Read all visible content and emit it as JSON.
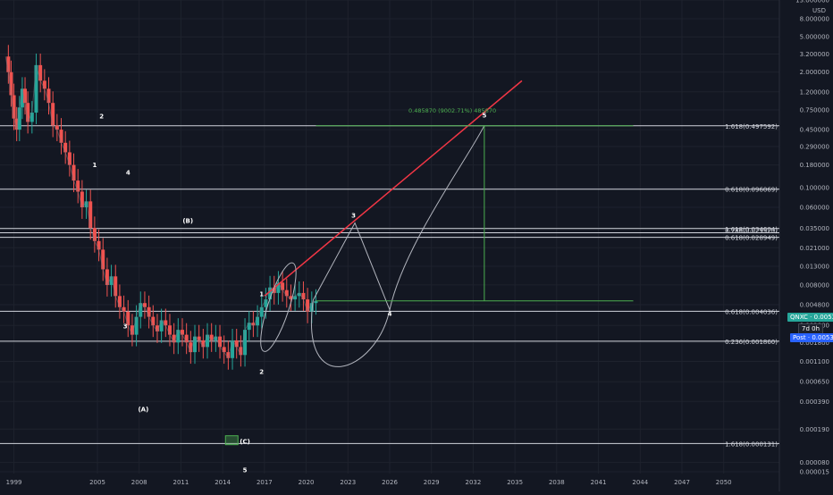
{
  "chart_data": {
    "type": "line",
    "title": "",
    "currency_label": "USD",
    "scale": "log",
    "ylim": [
      6e-05,
      13.0
    ],
    "xlim": [
      1998.0,
      2054.0
    ],
    "x_ticks": [
      "1999",
      "2005",
      "2008",
      "2011",
      "2014",
      "2017",
      "2020",
      "2023",
      "2026",
      "2029",
      "2032",
      "2035",
      "2038",
      "2041",
      "2044",
      "2047",
      "2050"
    ],
    "y_ticks": [
      "13.000000",
      "8.000000",
      "5.000000",
      "3.200000",
      "2.000000",
      "1.200000",
      "0.750000",
      "0.450000",
      "0.290000",
      "0.180000",
      "0.100000",
      "0.060000",
      "0.035000",
      "0.021000",
      "0.013000",
      "0.008000",
      "0.004800",
      "0.002800",
      "0.001800",
      "0.001100",
      "0.000650",
      "0.000390",
      "0.000190",
      "0.000080",
      "0.000015"
    ],
    "series": [
      {
        "name": "",
        "values_x": [
          1998.4,
          1998.6,
          1998.8,
          1999.0,
          1999.2,
          1999.4,
          1999.6,
          1999.8,
          2000.0,
          2000.3,
          2000.6,
          2000.9,
          2001.2,
          2001.5,
          2001.8,
          2002.1,
          2002.4,
          2002.7,
          2003.0,
          2003.3,
          2003.6,
          2003.9,
          2004.2,
          2004.5,
          2004.8,
          2005.1,
          2005.4,
          2005.7,
          2006.0,
          2006.3,
          2006.6,
          2006.9,
          2007.2,
          2007.5,
          2007.8,
          2008.1,
          2008.4,
          2008.7,
          2009.0,
          2009.3,
          2009.6,
          2009.9,
          2010.2,
          2010.5,
          2010.8,
          2011.1,
          2011.4,
          2011.7,
          2012.0,
          2012.3,
          2012.6,
          2012.9,
          2013.2,
          2013.5,
          2013.8,
          2014.1,
          2014.4,
          2014.7,
          2015.0,
          2015.3,
          2015.6,
          2015.9,
          2016.2,
          2016.5,
          2016.8,
          2017.1,
          2017.4,
          2017.7,
          2018.0,
          2018.3,
          2018.6,
          2018.9,
          2019.2,
          2019.5,
          2019.8,
          2020.1,
          2020.4,
          2020.7
        ],
        "values_y": [
          3.0,
          2.0,
          1.1,
          0.6,
          0.45,
          0.8,
          1.3,
          0.9,
          0.55,
          0.7,
          2.4,
          1.6,
          1.3,
          0.9,
          0.5,
          0.45,
          0.32,
          0.25,
          0.18,
          0.12,
          0.09,
          0.06,
          0.07,
          0.035,
          0.025,
          0.02,
          0.012,
          0.008,
          0.01,
          0.006,
          0.0045,
          0.004,
          0.0028,
          0.0022,
          0.0035,
          0.005,
          0.0045,
          0.0035,
          0.0028,
          0.0024,
          0.0032,
          0.0028,
          0.0022,
          0.0018,
          0.0025,
          0.0022,
          0.0018,
          0.0014,
          0.0021,
          0.0019,
          0.0016,
          0.0022,
          0.0019,
          0.0021,
          0.0016,
          0.0014,
          0.0012,
          0.0019,
          0.0016,
          0.0013,
          0.0025,
          0.003,
          0.0028,
          0.0035,
          0.0045,
          0.0055,
          0.0075,
          0.0065,
          0.0085,
          0.007,
          0.006,
          0.0055,
          0.006,
          0.0065,
          0.0055,
          0.004,
          0.005,
          0.0053
        ]
      }
    ],
    "fib_levels": [
      {
        "label": "1.618(0.497592)",
        "y": 0.497592
      },
      {
        "label": "0.618(0.096069)",
        "y": 0.096069
      },
      {
        "label": "1.618(0.034604)",
        "y": 0.034604
      },
      {
        "label": "0.786(0.029520)",
        "y": 0.031
      },
      {
        "label": "0.618(0.028949)",
        "y": 0.0275
      },
      {
        "label": "0.618(0.004036)",
        "y": 0.00404
      },
      {
        "label": "0.236(0.001860)",
        "y": 0.00186
      },
      {
        "label": "1.618(0.000131)",
        "y": 0.000131
      }
    ],
    "waves": [
      {
        "label": "1",
        "x": 2004.8,
        "y": 0.17
      },
      {
        "label": "2",
        "x": 2005.3,
        "y": 0.6
      },
      {
        "label": "4",
        "x": 2007.2,
        "y": 0.14
      },
      {
        "label": "3",
        "x": 2007.0,
        "y": 0.0026
      },
      {
        "label": "(B)",
        "x": 2011.5,
        "y": 0.04
      },
      {
        "label": "(A)",
        "x": 2008.3,
        "y": 0.0003
      },
      {
        "label": "1",
        "x": 2016.8,
        "y": 0.006
      },
      {
        "label": "2",
        "x": 2016.8,
        "y": 0.0008
      },
      {
        "label": "(C)",
        "x": 2015.6,
        "y": 0.00013
      },
      {
        "label": "5",
        "x": 2015.6,
        "y": 6.2e-05
      },
      {
        "label": "3",
        "x": 2023.4,
        "y": 0.046
      },
      {
        "label": "4",
        "x": 2026.0,
        "y": 0.0036
      },
      {
        "label": "5",
        "x": 2032.8,
        "y": 0.62
      }
    ],
    "measure_label": "0.485870 (9002.71%) 485870",
    "price_tags": [
      {
        "label": "QNXC",
        "value": "0.005300",
        "color": "#26a69a"
      },
      {
        "label": "",
        "value": "7d 0h",
        "color": "#1e222d"
      },
      {
        "label": "Post",
        "value": "0.005300",
        "color": "#2962ff"
      }
    ],
    "grid": true,
    "legend": "none"
  }
}
